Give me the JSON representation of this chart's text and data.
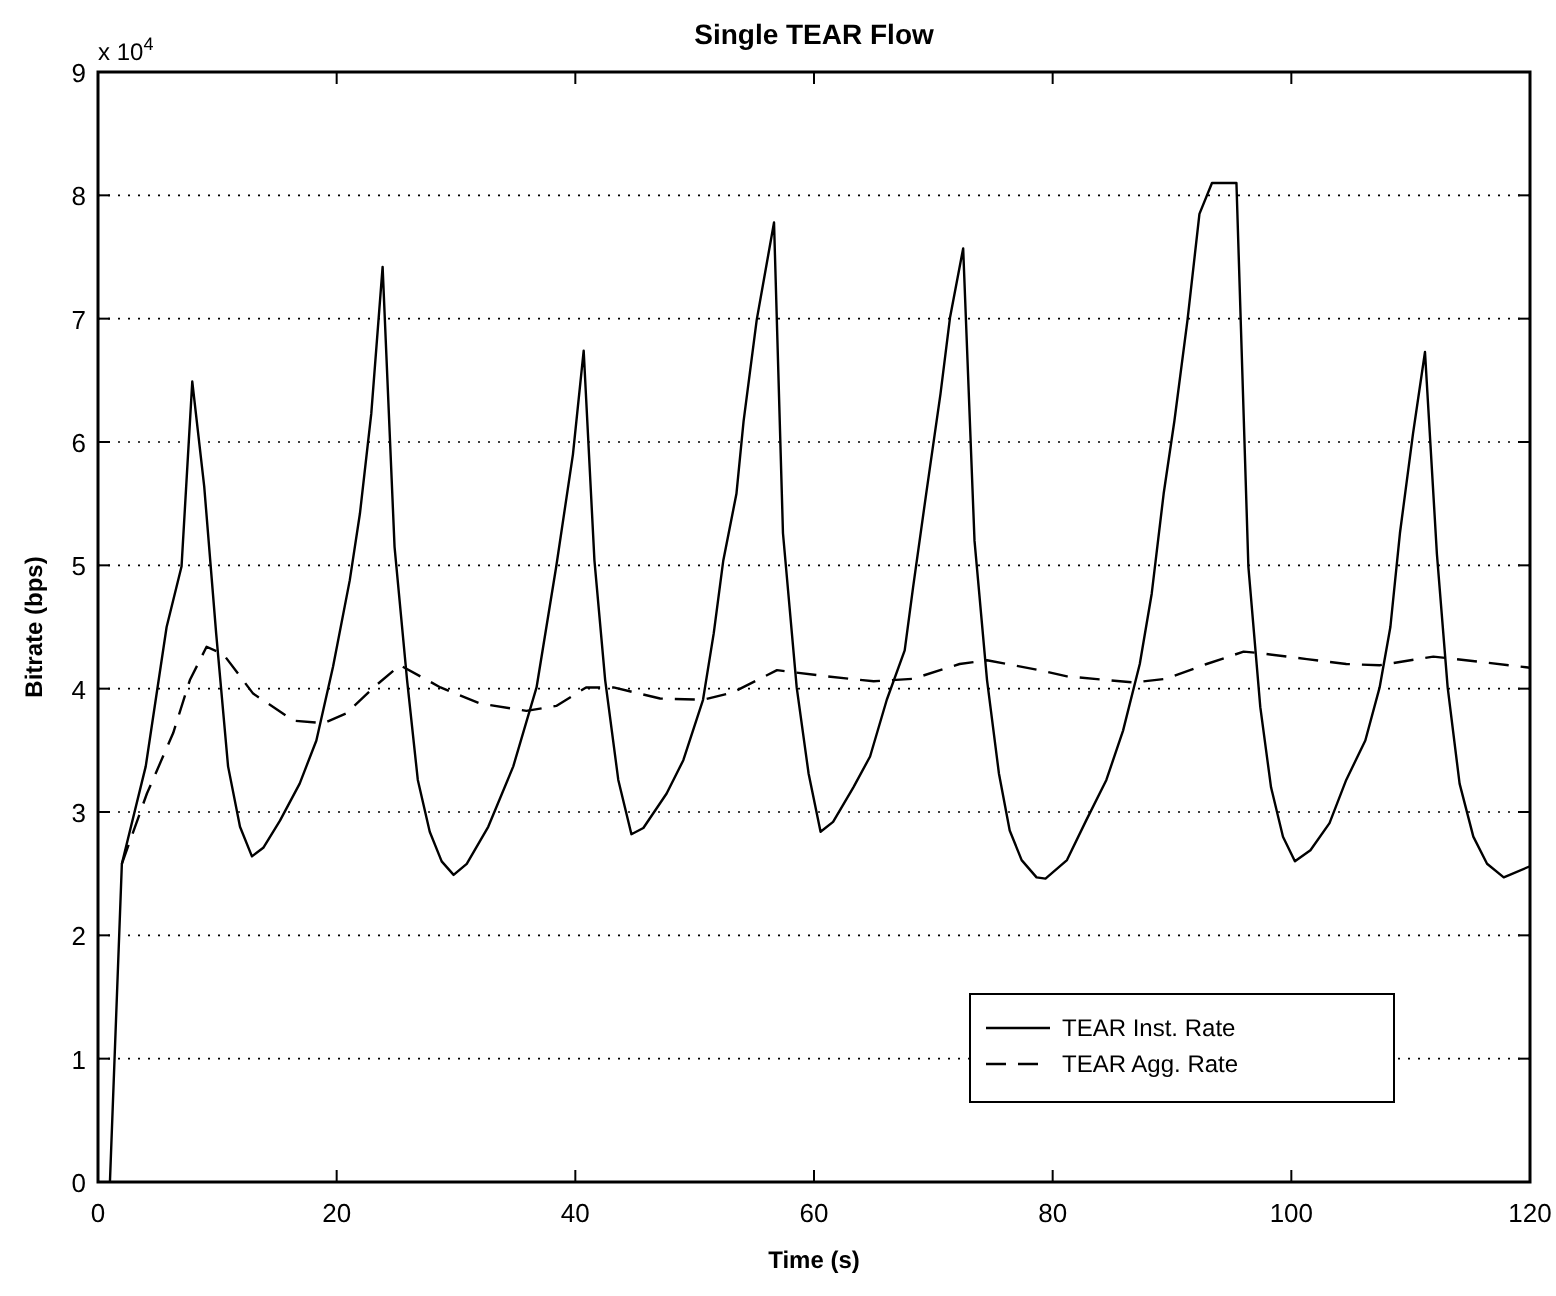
{
  "chart_data": {
    "type": "line",
    "title": "Single TEAR Flow",
    "xlabel": "Time (s)",
    "ylabel": "Bitrate (bps)",
    "annotations": [
      "x 10$^{4}$"
    ],
    "xlim": [
      0,
      120
    ],
    "xticks": [
      0,
      20,
      40,
      60,
      80,
      100,
      120
    ],
    "ylim": [
      0,
      9
    ],
    "yticks": [
      0,
      1,
      2,
      3,
      4,
      5,
      6,
      7,
      8,
      9
    ],
    "grid": "y",
    "legend": "bottom right",
    "series": [
      {
        "name": "TEAR Inst. Rate",
        "color": "#000000",
        "line_style": "solid",
        "x": [
          1,
          2,
          4,
          5.75,
          7,
          7.9,
          8.9,
          9.9,
          10.9,
          11.9,
          12.9,
          13.85,
          15.25,
          16.9,
          18.3,
          19.7,
          21.1,
          21.95,
          22.9,
          23.85,
          24.85,
          25.9,
          26.8,
          27.8,
          28.8,
          29.8,
          30.9,
          32.7,
          34.8,
          36.75,
          38.4,
          39.8,
          40.7,
          41.6,
          42.5,
          43.6,
          44.7,
          45.7,
          47.65,
          49.05,
          50.7,
          51.6,
          52.4,
          53.5,
          54.1,
          55.2,
          56.65,
          57.4,
          58.55,
          59.55,
          60.55,
          61.6,
          63.3,
          64.7,
          66.1,
          67.6,
          68.3,
          69.4,
          70.6,
          71.4,
          72.5,
          73.45,
          74.5,
          75.5,
          76.4,
          77.4,
          78.65,
          79.4,
          81.2,
          82.8,
          84.5,
          85.9,
          87.3,
          88.3,
          89.3,
          90.2,
          91.3,
          92.3,
          93.35,
          95.4,
          96.4,
          97.4,
          98.3,
          99.3,
          100.3,
          101.6,
          103.2,
          104.6,
          106.2,
          107.4,
          108.3,
          109.1,
          110.2,
          111.2,
          112.2,
          113.1,
          114.1,
          115.25,
          116.4,
          117.8,
          118.3,
          120
        ],
        "values": [
          0,
          2.58,
          3.37,
          4.5,
          4.99,
          6.49,
          5.64,
          4.45,
          3.37,
          2.88,
          2.64,
          2.71,
          2.93,
          3.23,
          3.58,
          4.18,
          4.88,
          5.42,
          6.23,
          7.42,
          5.15,
          4.07,
          3.26,
          2.84,
          2.6,
          2.49,
          2.58,
          2.88,
          3.37,
          4.01,
          4.99,
          5.9,
          6.74,
          5.04,
          4.07,
          3.26,
          2.82,
          2.87,
          3.15,
          3.42,
          3.91,
          4.45,
          5.04,
          5.58,
          6.17,
          6.99,
          7.78,
          5.26,
          4.01,
          3.31,
          2.84,
          2.92,
          3.2,
          3.45,
          3.91,
          4.31,
          4.82,
          5.58,
          6.39,
          7.01,
          7.57,
          5.2,
          4.07,
          3.31,
          2.85,
          2.61,
          2.47,
          2.46,
          2.61,
          2.93,
          3.26,
          3.66,
          4.2,
          4.77,
          5.58,
          6.17,
          6.99,
          7.85,
          8.1,
          8.1,
          4.99,
          3.85,
          3.2,
          2.8,
          2.6,
          2.69,
          2.91,
          3.26,
          3.58,
          4.01,
          4.5,
          5.26,
          6.07,
          6.73,
          5.09,
          4.01,
          3.23,
          2.8,
          2.58,
          2.47,
          2.49,
          2.56
        ]
      },
      {
        "name": "TEAR Agg. Rate",
        "color": "#000000",
        "line_style": "dashed",
        "x": [
          2,
          2.7,
          4.1,
          6.3,
          7.7,
          9.1,
          10.5,
          13,
          16.4,
          18.9,
          20.8,
          23.1,
          25.3,
          28.7,
          32,
          35.9,
          38.4,
          40.9,
          43.2,
          47.1,
          50.7,
          53.2,
          56.9,
          61.05,
          65,
          68.3,
          72.2,
          74.5,
          78.9,
          81.2,
          86.8,
          89.5,
          92.9,
          96,
          97.2,
          101.3,
          104.6,
          107.4,
          111.9,
          113.8,
          120
        ],
        "values": [
          2.58,
          2.77,
          3.15,
          3.64,
          4.07,
          4.34,
          4.28,
          3.96,
          3.74,
          3.72,
          3.8,
          4.01,
          4.19,
          4.01,
          3.88,
          3.82,
          3.86,
          4.01,
          4.01,
          3.92,
          3.91,
          3.97,
          4.15,
          4.1,
          4.06,
          4.08,
          4.2,
          4.23,
          4.15,
          4.1,
          4.05,
          4.08,
          4.2,
          4.3,
          4.29,
          4.24,
          4.2,
          4.19,
          4.26,
          4.24,
          4.17
        ]
      }
    ]
  }
}
